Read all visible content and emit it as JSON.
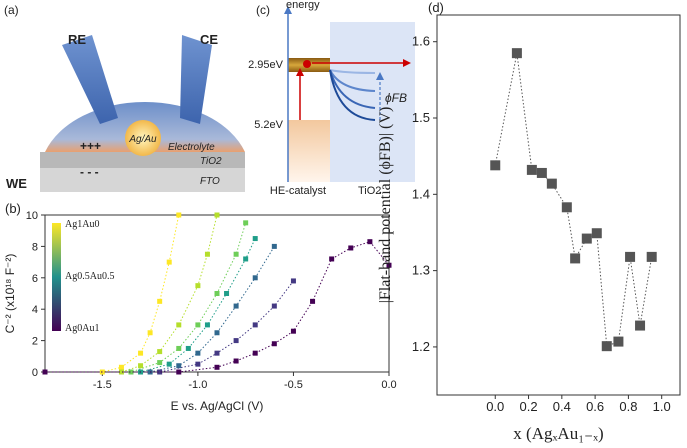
{
  "diagrams": {
    "a": {
      "panel": "(a)",
      "re": "RE",
      "ce": "CE",
      "particle": "Ag/Au",
      "electrolyte": "Electrolyte",
      "plus": "+++",
      "minus": "- - -",
      "tio2": "TiO2",
      "fto": "FTO",
      "we": "WE"
    },
    "c": {
      "panel": "(c)",
      "axis": "energy",
      "level_high": "2.95eV",
      "level_low": "5.2eV",
      "phi": "ϕFB",
      "left": "HE-catalyst",
      "right": "TiO2"
    }
  },
  "chart_data": [
    {
      "type": "line",
      "panel": "(b)",
      "xlabel": "E vs. Ag/AgCl (V)",
      "ylabel": "C⁻² (x10¹⁸ F⁻²)",
      "xlim": [
        -1.8,
        0
      ],
      "ylim": [
        0,
        10
      ],
      "xticks": [
        -1.5,
        {
          "value": -1,
          "label": "-1.0"
        },
        -0.5,
        {
          "value": 0,
          "label": "0.0"
        }
      ],
      "yticks": [
        0,
        2,
        4,
        6,
        8,
        10
      ],
      "marker": "square",
      "linestyle": "dotted",
      "colorbar": {
        "labels": [
          "Ag1Au0",
          "Ag0.5Au0.5",
          "Ag0Au1"
        ],
        "colors": [
          "#fde725",
          "#21918c",
          "#440154"
        ]
      },
      "series": [
        {
          "color": "#fde725",
          "x": [
            -1.8,
            -1.5,
            -1.4,
            -1.3,
            -1.25,
            -1.2,
            -1.15,
            -1.1
          ],
          "values": [
            0,
            0,
            0.3,
            1.2,
            2.5,
            4.5,
            7,
            10
          ]
        },
        {
          "color": "#b5de2b",
          "x": [
            -1.8,
            -1.4,
            -1.3,
            -1.2,
            -1.1,
            -1.0,
            -0.95,
            -0.9
          ],
          "values": [
            0,
            0,
            0.4,
            1.3,
            3,
            5.5,
            7.5,
            10
          ]
        },
        {
          "color": "#6ece58",
          "x": [
            -1.8,
            -1.35,
            -1.2,
            -1.1,
            -1.0,
            -0.9,
            -0.8,
            -0.75
          ],
          "values": [
            0,
            0,
            0.6,
            1.5,
            3,
            5,
            7.5,
            9.5
          ]
        },
        {
          "color": "#1f9e89",
          "x": [
            -1.8,
            -1.3,
            -1.15,
            -1.05,
            -0.95,
            -0.85,
            -0.75,
            -0.7
          ],
          "values": [
            0,
            0,
            0.5,
            1.5,
            3,
            5,
            7.2,
            8.5
          ]
        },
        {
          "color": "#31688e",
          "x": [
            -1.8,
            -1.25,
            -1.1,
            -1.0,
            -0.9,
            -0.8,
            -0.7,
            -0.6
          ],
          "values": [
            0,
            0,
            0.4,
            1.2,
            2.5,
            4.2,
            6,
            8
          ]
        },
        {
          "color": "#443983",
          "x": [
            -1.8,
            -1.2,
            -1.0,
            -0.9,
            -0.8,
            -0.7,
            -0.6,
            -0.5
          ],
          "values": [
            0,
            0,
            0.5,
            1.2,
            2,
            3,
            4.2,
            5.8
          ]
        },
        {
          "color": "#440154",
          "x": [
            -1.8,
            -1.1,
            -0.9,
            -0.8,
            -0.7,
            -0.6,
            -0.5,
            -0.4,
            -0.3,
            -0.2,
            -0.1,
            0
          ],
          "values": [
            0,
            0,
            0.3,
            0.7,
            1.2,
            1.8,
            2.6,
            4.5,
            7.2,
            7.9,
            8.3,
            6.8
          ]
        }
      ]
    },
    {
      "type": "line",
      "panel": "(d)",
      "xlabel": "x (AgₓAu₁₋ₓ)",
      "ylabel": "|Flat-band potential (ϕFB)| (V)",
      "xlim": [
        -0.35,
        1.11
      ],
      "ylim": [
        1.137,
        1.635
      ],
      "xticks": [
        {
          "value": 0,
          "label": "0.0"
        },
        0.2,
        0.4,
        0.6,
        0.8,
        {
          "value": 1,
          "label": "1.0"
        }
      ],
      "yticks": [
        1.2,
        1.3,
        1.4,
        1.5,
        1.6
      ],
      "marker": "square",
      "linestyle": "dotted",
      "series": [
        {
          "color": "#555555",
          "x": [
            0,
            0.13,
            0.22,
            0.28,
            0.34,
            0.43,
            0.48,
            0.55,
            0.61,
            0.67,
            0.74,
            0.81,
            0.87,
            0.94
          ],
          "values": [
            1.438,
            1.585,
            1.432,
            1.428,
            1.414,
            1.383,
            1.316,
            1.342,
            1.349,
            1.201,
            1.207,
            1.318,
            1.228,
            1.318
          ]
        }
      ]
    }
  ]
}
